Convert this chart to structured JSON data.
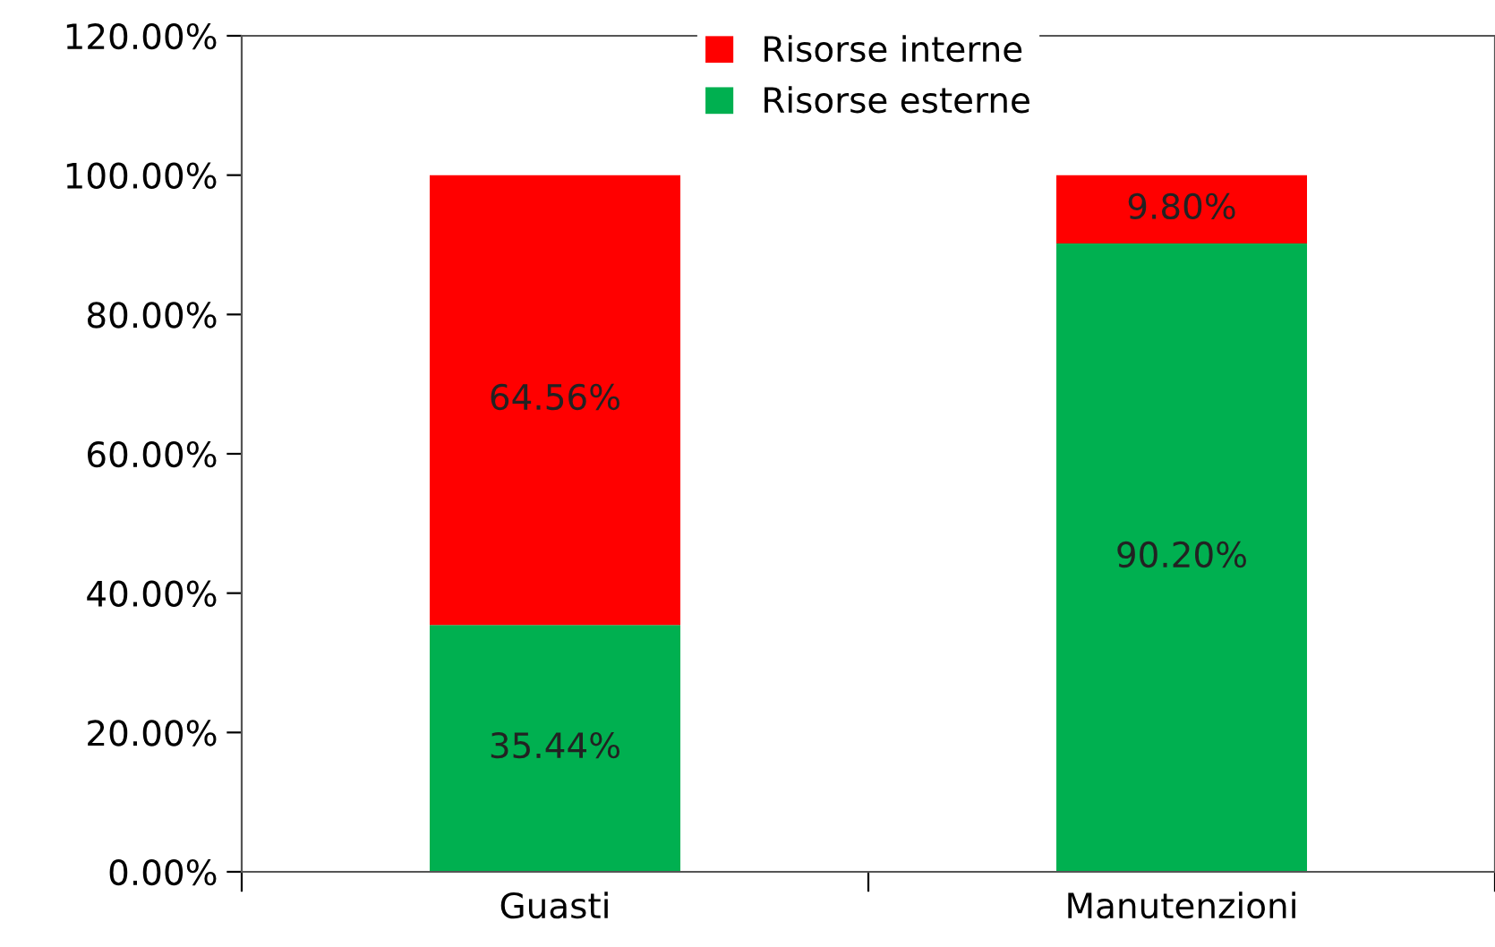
{
  "chart_data": {
    "type": "bar",
    "stacked": true,
    "categories": [
      "Guasti",
      "Manutenzioni"
    ],
    "series": [
      {
        "name": "Risorse esterne",
        "color": "#00b050",
        "values": [
          35.44,
          90.2
        ],
        "value_labels": [
          "35.44%",
          "90.20%"
        ]
      },
      {
        "name": "Risorse interne",
        "color": "#ff0000",
        "values": [
          64.56,
          9.8
        ],
        "value_labels": [
          "64.56%",
          "9.80%"
        ]
      }
    ],
    "ylim": [
      0,
      120
    ],
    "yticks": [
      {
        "value": 0,
        "label": "0.00%"
      },
      {
        "value": 20,
        "label": "20.00%"
      },
      {
        "value": 40,
        "label": "40.00%"
      },
      {
        "value": 60,
        "label": "60.00%"
      },
      {
        "value": 80,
        "label": "80.00%"
      },
      {
        "value": 100,
        "label": "100.00%"
      },
      {
        "value": 120,
        "label": "120.00%"
      }
    ],
    "grid": false,
    "legend": "top"
  }
}
